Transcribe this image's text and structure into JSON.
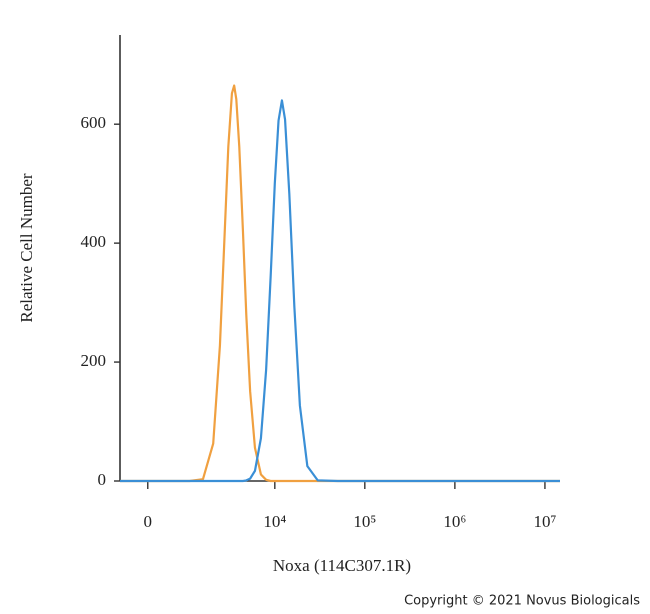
{
  "chart_data": {
    "type": "line",
    "x_label": "Noxa (114C307.1R)",
    "y_label": "Relative Cell Number",
    "annotation": "Copyright © 2021 Novus Biologicals",
    "xscale": "biexponential",
    "x": [
      -600,
      0,
      500,
      1000,
      1500,
      2000,
      2400,
      2700,
      3000,
      3300,
      3500,
      3700,
      4000,
      4400,
      4800,
      5300,
      6000,
      7000,
      8000,
      9000,
      10000,
      11000,
      12000,
      13000,
      14500,
      16500,
      19000,
      23000,
      30000,
      50000,
      100000,
      1000000,
      14700000
    ],
    "series": [
      {
        "color": "#f0a040",
        "values": [
          0,
          0,
          0,
          0,
          3,
          63,
          228,
          403,
          562,
          652,
          665,
          642,
          562,
          420,
          279,
          151,
          56,
          11,
          2,
          0,
          0,
          0,
          0,
          0,
          0,
          0,
          0,
          0,
          0,
          0,
          0,
          0,
          0
        ]
      },
      {
        "color": "#3a8fd6",
        "values": [
          0,
          0,
          0,
          0,
          0,
          0,
          0,
          0,
          0,
          0,
          0,
          0,
          0,
          0,
          1,
          4,
          17,
          72,
          187,
          346,
          501,
          606,
          640,
          608,
          483,
          293,
          127,
          25,
          1,
          0,
          0,
          0,
          0
        ]
      }
    ],
    "xlim": [
      -600,
      14700000
    ],
    "xticks": [
      0,
      {
        "value": 10000,
        "label": "10⁴"
      },
      {
        "value": 100000,
        "label": "10⁵"
      },
      {
        "value": 1000000,
        "label": "10⁶"
      },
      {
        "value": 10000000,
        "label": "10⁷"
      }
    ],
    "ylim": [
      0,
      750
    ],
    "yticks": [
      0,
      200,
      400,
      600
    ],
    "grid": false
  }
}
